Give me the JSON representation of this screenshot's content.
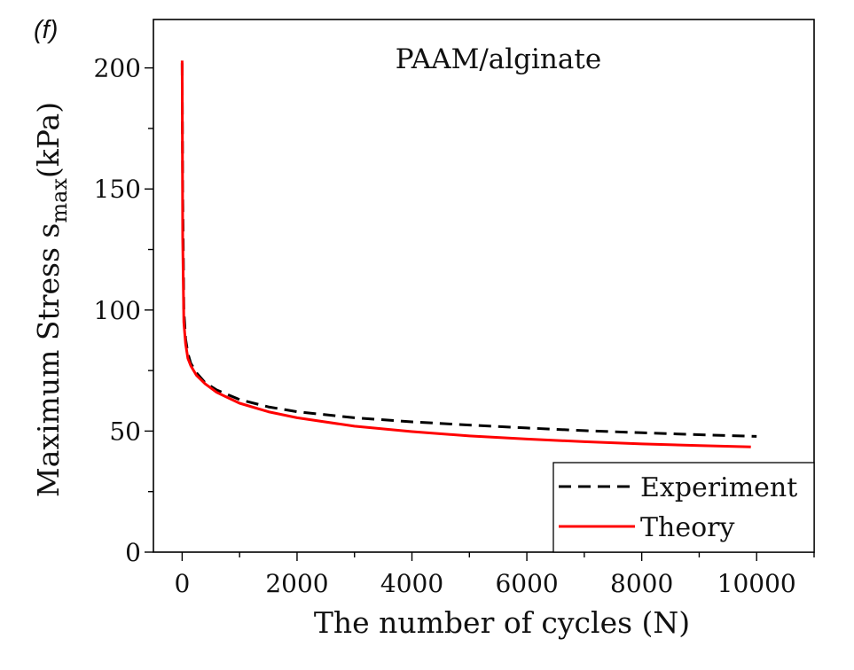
{
  "panel_label": "(f)",
  "chart_data": {
    "type": "line",
    "annotation": "PAAM/alginate",
    "xlabel": "The number of cycles (N)",
    "ylabel_main": "Maximum Stress s",
    "ylabel_sub": "max",
    "ylabel_unit": "(kPa)",
    "xlim": [
      -500,
      11000
    ],
    "ylim": [
      0,
      220
    ],
    "xticks": [
      0,
      2000,
      4000,
      6000,
      8000,
      10000
    ],
    "xtick_labels": [
      "0",
      "2000",
      "4000",
      "6000",
      "8000",
      "10000"
    ],
    "yticks": [
      0,
      50,
      100,
      150,
      200
    ],
    "ytick_labels": [
      "0",
      "50",
      "100",
      "150",
      "200"
    ],
    "grid": false,
    "legend_position": "bottom-right",
    "series": [
      {
        "name": "Experiment",
        "color": "#000000",
        "style": "dashed",
        "x": [
          0,
          10,
          30,
          60,
          100,
          150,
          250,
          400,
          600,
          1000,
          1500,
          2000,
          3000,
          4000,
          5000,
          6000,
          7000,
          8000,
          9000,
          10000
        ],
        "y": [
          202,
          150,
          100,
          88,
          82,
          78,
          74,
          70,
          67,
          63,
          60,
          58,
          55.5,
          53.8,
          52.5,
          51.3,
          50.2,
          49.3,
          48.5,
          47.8
        ]
      },
      {
        "name": "Theory",
        "color": "#ff0000",
        "style": "solid",
        "x": [
          0,
          10,
          30,
          60,
          100,
          150,
          250,
          400,
          600,
          1000,
          1500,
          2000,
          3000,
          4000,
          5000,
          6000,
          7000,
          8000,
          9000,
          9900
        ],
        "y": [
          203,
          130,
          95,
          86,
          80,
          77,
          73,
          69.5,
          66,
          61.5,
          58,
          55.5,
          52,
          49.8,
          48,
          46.7,
          45.6,
          44.7,
          44,
          43.5
        ]
      }
    ]
  }
}
